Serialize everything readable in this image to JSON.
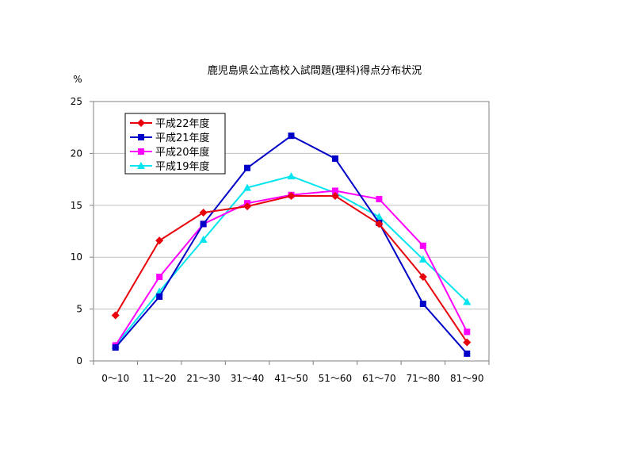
{
  "chart_data": {
    "type": "line",
    "title": "鹿児島県公立高校入試問題(理科)得点分布状況",
    "ylabel": "%",
    "xlabel": "",
    "categories": [
      "0～10",
      "11～20",
      "21～30",
      "31～40",
      "41～50",
      "51～60",
      "61～70",
      "71～80",
      "81～90"
    ],
    "ylim": [
      0,
      25
    ],
    "yticks": [
      "0",
      "5",
      "10",
      "15",
      "20",
      "25"
    ],
    "grid": true,
    "legend_position": "top-left",
    "series": [
      {
        "name": "平成22年度",
        "color": "#e8000b",
        "marker": "diamond",
        "values": [
          4.4,
          11.6,
          14.3,
          14.9,
          15.9,
          15.9,
          13.2,
          8.1,
          1.8
        ]
      },
      {
        "name": "平成21年度",
        "color": "#0000c8",
        "marker": "square",
        "values": [
          1.3,
          6.2,
          13.2,
          18.6,
          21.7,
          19.5,
          13.3,
          5.5,
          0.7
        ]
      },
      {
        "name": "平成20年度",
        "color": "#ff00ff",
        "marker": "square",
        "values": [
          1.5,
          8.1,
          13.2,
          15.2,
          16.0,
          16.4,
          15.6,
          11.1,
          2.8
        ]
      },
      {
        "name": "平成19年度",
        "color": "#00e5ee",
        "marker": "triangle",
        "values": [
          1.5,
          6.7,
          11.7,
          16.7,
          17.8,
          16.2,
          13.9,
          9.8,
          5.7
        ]
      }
    ]
  }
}
